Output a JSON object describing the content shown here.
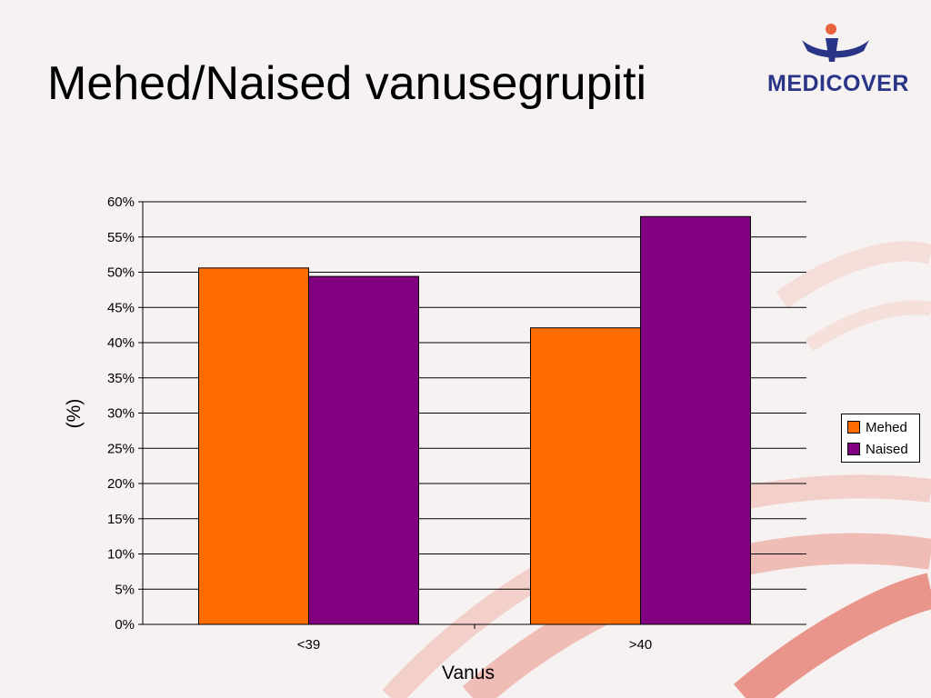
{
  "title": "Mehed/Naised vanusegrupiti",
  "logo": {
    "text": "MEDICOVER",
    "icon": "medicover-person-icon",
    "color": "#2a3588",
    "accent": "#e8633a"
  },
  "colors": {
    "mehed": "#ff6c00",
    "naised": "#800080",
    "background": "#f7f2f2",
    "decor": "#e99a8e"
  },
  "chart_data": {
    "type": "bar",
    "categories": [
      "<39",
      ">40"
    ],
    "series": [
      {
        "name": "Mehed",
        "values": [
          50.6,
          42.1
        ]
      },
      {
        "name": "Naised",
        "values": [
          49.4,
          57.9
        ]
      }
    ],
    "xlabel": "Vanus",
    "ylabel": "(%)",
    "ylim": [
      0,
      60
    ],
    "yticks": [
      "0%",
      "5%",
      "10%",
      "15%",
      "20%",
      "25%",
      "30%",
      "35%",
      "40%",
      "45%",
      "50%",
      "55%",
      "60%"
    ],
    "grid": true,
    "legend": "right"
  }
}
